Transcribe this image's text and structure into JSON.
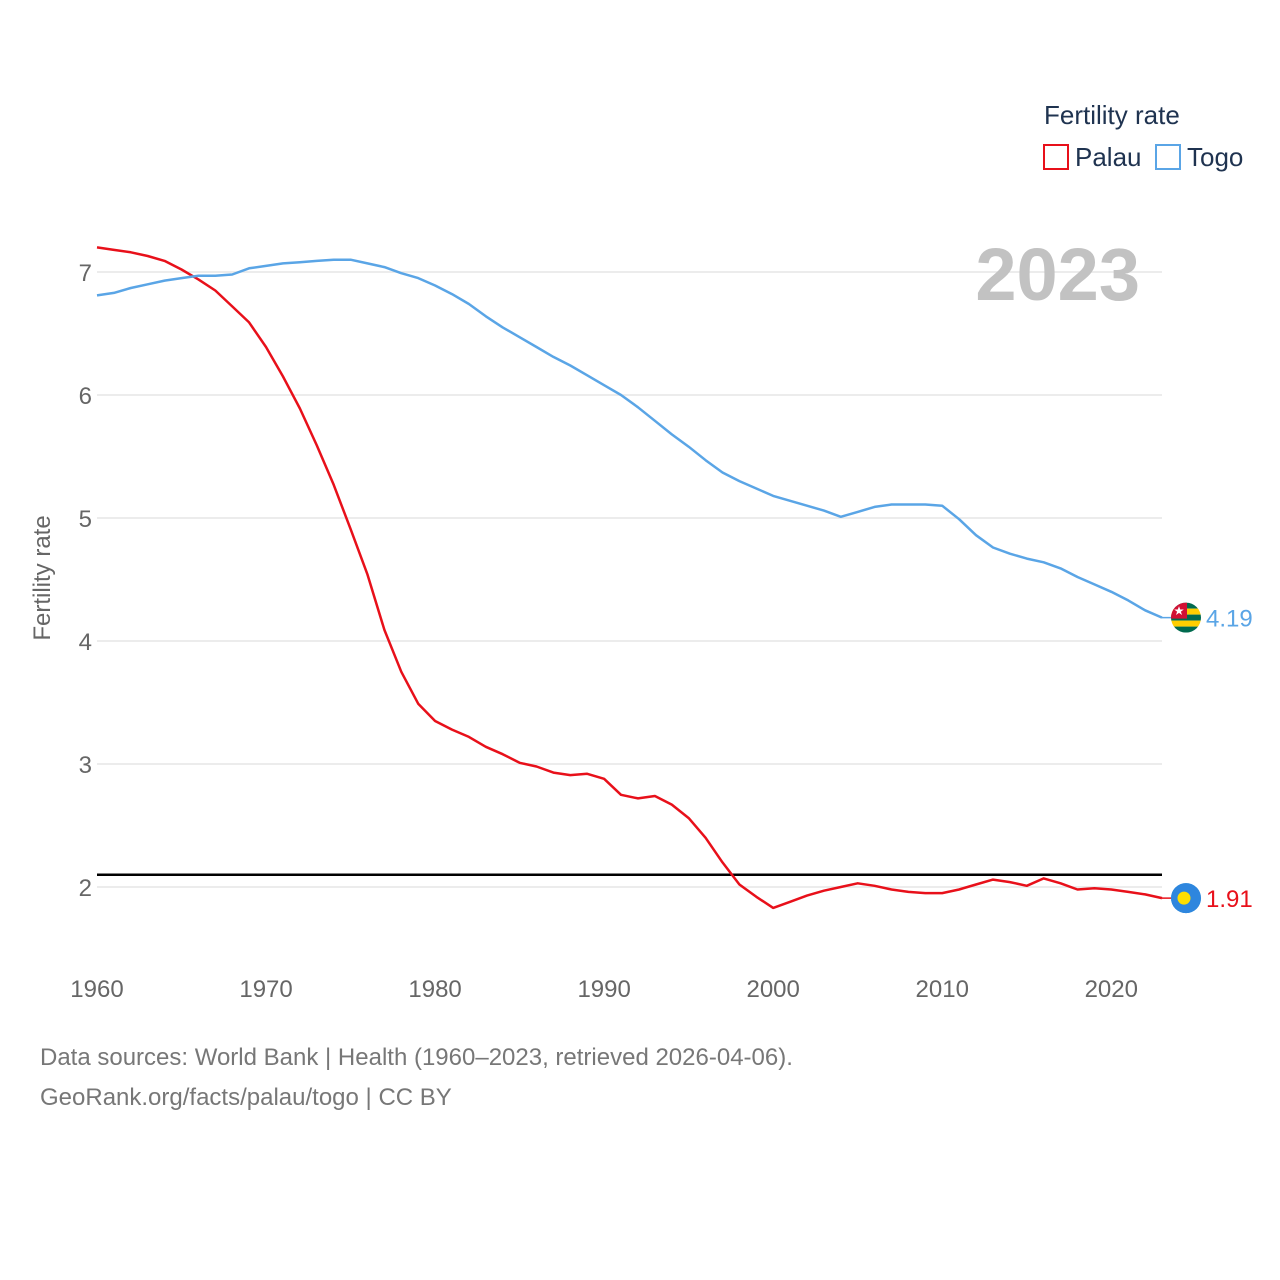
{
  "chart_data": {
    "type": "line",
    "year_label": "2023",
    "ylabel": "Fertility rate",
    "ylim": [
      1.4,
      7.5
    ],
    "xlim": [
      1960,
      2023
    ],
    "yticks": [
      2,
      3,
      4,
      5,
      6,
      7
    ],
    "xticks": [
      1960,
      1970,
      1980,
      1990,
      2000,
      2010,
      2020
    ],
    "reference_line": {
      "y": 2.1,
      "color": "#000000"
    },
    "legend": {
      "title": "Fertility rate",
      "position": "top-right"
    },
    "x": [
      1960,
      1961,
      1962,
      1963,
      1964,
      1965,
      1966,
      1967,
      1968,
      1969,
      1970,
      1971,
      1972,
      1973,
      1974,
      1975,
      1976,
      1977,
      1978,
      1979,
      1980,
      1981,
      1982,
      1983,
      1984,
      1985,
      1986,
      1987,
      1988,
      1989,
      1990,
      1991,
      1992,
      1993,
      1994,
      1995,
      1996,
      1997,
      1998,
      1999,
      2000,
      2001,
      2002,
      2003,
      2004,
      2005,
      2006,
      2007,
      2008,
      2009,
      2010,
      2011,
      2012,
      2013,
      2014,
      2015,
      2016,
      2017,
      2018,
      2019,
      2020,
      2021,
      2022,
      2023
    ],
    "series": [
      {
        "name": "Palau",
        "color": "#e8101a",
        "end_value_label": "1.91",
        "flag": "palau-flag-icon",
        "values": [
          7.2,
          7.18,
          7.16,
          7.13,
          7.09,
          7.02,
          6.94,
          6.85,
          6.72,
          6.59,
          6.39,
          6.15,
          5.89,
          5.59,
          5.27,
          4.91,
          4.54,
          4.09,
          3.75,
          3.49,
          3.35,
          3.28,
          3.22,
          3.14,
          3.08,
          3.01,
          2.98,
          2.93,
          2.91,
          2.92,
          2.88,
          2.75,
          2.72,
          2.74,
          2.67,
          2.56,
          2.4,
          2.2,
          2.02,
          1.92,
          1.83,
          1.88,
          1.93,
          1.97,
          2.0,
          2.03,
          2.01,
          1.98,
          1.96,
          1.95,
          1.95,
          1.98,
          2.02,
          2.06,
          2.04,
          2.01,
          2.07,
          2.03,
          1.98,
          1.99,
          1.98,
          1.96,
          1.94,
          1.91
        ]
      },
      {
        "name": "Togo",
        "color": "#5aa5e6",
        "end_value_label": "4.19",
        "flag": "togo-flag-icon",
        "values": [
          6.81,
          6.83,
          6.87,
          6.9,
          6.93,
          6.95,
          6.97,
          6.97,
          6.98,
          7.03,
          7.05,
          7.07,
          7.08,
          7.09,
          7.1,
          7.1,
          7.07,
          7.04,
          6.99,
          6.95,
          6.89,
          6.82,
          6.74,
          6.64,
          6.55,
          6.47,
          6.39,
          6.31,
          6.24,
          6.16,
          6.08,
          6.0,
          5.9,
          5.79,
          5.68,
          5.58,
          5.47,
          5.37,
          5.3,
          5.24,
          5.18,
          5.14,
          5.1,
          5.06,
          5.01,
          5.05,
          5.09,
          5.11,
          5.11,
          5.11,
          5.1,
          4.99,
          4.86,
          4.76,
          4.71,
          4.67,
          4.64,
          4.59,
          4.52,
          4.46,
          4.4,
          4.33,
          4.25,
          4.19
        ]
      }
    ]
  },
  "source": {
    "line1": "Data sources: World Bank | Health (1960–2023, retrieved 2026-04-06).",
    "line2": "GeoRank.org/facts/palau/togo | CC BY"
  }
}
